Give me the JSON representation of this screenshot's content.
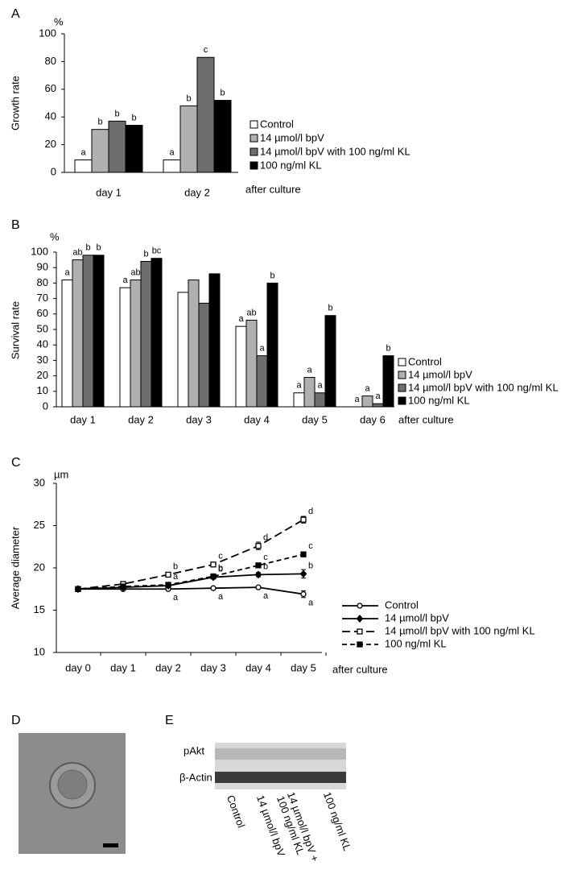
{
  "chart_data": [
    {
      "type": "bar",
      "panel": "A",
      "y_label": "Growth rate",
      "y_unit": "%",
      "x_note": "after culture",
      "categories": [
        "day 1",
        "day 2"
      ],
      "series": [
        {
          "name": "Control",
          "color": "#ffffff",
          "values": [
            9,
            9
          ],
          "letters": [
            "a",
            "a"
          ]
        },
        {
          "name": "14 µmol/l bpV",
          "color": "#b0b0b0",
          "values": [
            31,
            48
          ],
          "letters": [
            "b",
            "b"
          ]
        },
        {
          "name": "14 µmol/l bpV with 100 ng/ml KL",
          "color": "#6e6e6e",
          "values": [
            37,
            83
          ],
          "letters": [
            "b",
            "c"
          ]
        },
        {
          "name": "100 ng/ml KL",
          "color": "#000000",
          "values": [
            34,
            52
          ],
          "letters": [
            "b",
            "b"
          ]
        }
      ],
      "ylim": [
        0,
        100
      ],
      "yticks": [
        0,
        20,
        40,
        60,
        80,
        100
      ]
    },
    {
      "type": "bar",
      "panel": "B",
      "y_label": "Survival rate",
      "y_unit": "%",
      "x_note": "after culture",
      "categories": [
        "day 1",
        "day 2",
        "day 3",
        "day 4",
        "day 5",
        "day 6"
      ],
      "series": [
        {
          "name": "Control",
          "color": "#ffffff",
          "values": [
            82,
            77,
            74,
            52,
            9,
            0
          ],
          "letters": [
            "a",
            "a",
            null,
            "a",
            "a",
            "a"
          ]
        },
        {
          "name": "14 µmol/l bpV",
          "color": "#b0b0b0",
          "values": [
            95,
            82,
            82,
            56,
            19,
            7
          ],
          "letters": [
            "ab",
            "ab",
            null,
            "ab",
            "a",
            "a"
          ]
        },
        {
          "name": "14 µmol/l bpV with 100 ng/ml KL",
          "color": "#6e6e6e",
          "values": [
            98,
            94,
            67,
            33,
            9,
            2
          ],
          "letters": [
            "b",
            "b",
            null,
            "a",
            "a",
            "a"
          ]
        },
        {
          "name": "100 ng/ml KL",
          "color": "#000000",
          "values": [
            98,
            96,
            86,
            80,
            59,
            33
          ],
          "letters": [
            "b",
            "bc",
            null,
            "b",
            "b",
            "b"
          ]
        }
      ],
      "ylim": [
        0,
        100
      ],
      "yticks": [
        0,
        10,
        20,
        30,
        40,
        50,
        60,
        70,
        80,
        90,
        100
      ]
    },
    {
      "type": "line",
      "panel": "C",
      "y_label": "Average diameter",
      "y_unit": "µm",
      "x_note": "after culture",
      "categories": [
        "day 0",
        "day 1",
        "day 2",
        "day 3",
        "day 4",
        "day 5"
      ],
      "series": [
        {
          "name": "Control",
          "color": "#000000",
          "marker": "open-circle",
          "dash": "solid",
          "values": [
            17.5,
            17.5,
            17.5,
            17.6,
            17.7,
            16.9
          ],
          "errors": [
            0.1,
            0.1,
            0.1,
            0.1,
            0.15,
            0.4
          ],
          "letters": [
            null,
            null,
            "a",
            "a",
            "a",
            "a"
          ]
        },
        {
          "name": "14 µmol/l bpV",
          "color": "#000000",
          "marker": "filled-diamond",
          "dash": "solid",
          "values": [
            17.5,
            17.7,
            17.9,
            18.9,
            19.2,
            19.3
          ],
          "errors": [
            0.1,
            0.1,
            0.1,
            0.2,
            0.25,
            0.5
          ],
          "letters": [
            null,
            null,
            null,
            "b",
            "b",
            "b"
          ]
        },
        {
          "name": "14 µmol/l bpV with 100 ng/ml KL",
          "color": "#000000",
          "marker": "open-square",
          "dash": "long-dash",
          "values": [
            17.5,
            18.1,
            19.2,
            20.4,
            22.6,
            25.7
          ],
          "errors": [
            0.1,
            0.15,
            0.2,
            0.25,
            0.45,
            0.4
          ],
          "letters": [
            null,
            null,
            "b",
            "c",
            "d",
            "d"
          ]
        },
        {
          "name": "100 ng/ml KL",
          "color": "#000000",
          "marker": "filled-square",
          "dash": "dash",
          "values": [
            17.5,
            17.8,
            18.0,
            19.0,
            20.3,
            21.6
          ],
          "errors": [
            0.1,
            0.1,
            0.15,
            0.15,
            0.2,
            0.2
          ],
          "letters": [
            null,
            null,
            "a",
            "b",
            "c",
            "c"
          ]
        }
      ],
      "ylim": [
        10,
        30
      ],
      "yticks": [
        10,
        15,
        20,
        25,
        30
      ]
    }
  ],
  "figure": {
    "panel_d": "D",
    "panel_e": "E",
    "blot_rows": [
      "pAkt",
      "β-Actin"
    ],
    "blot_lanes": [
      [
        "Control"
      ],
      [
        "14 µmol/l bpV"
      ],
      [
        "14 µmol/l bpV +",
        "100 ng/ml KL"
      ],
      [
        "100 ng/ml KL"
      ]
    ]
  }
}
